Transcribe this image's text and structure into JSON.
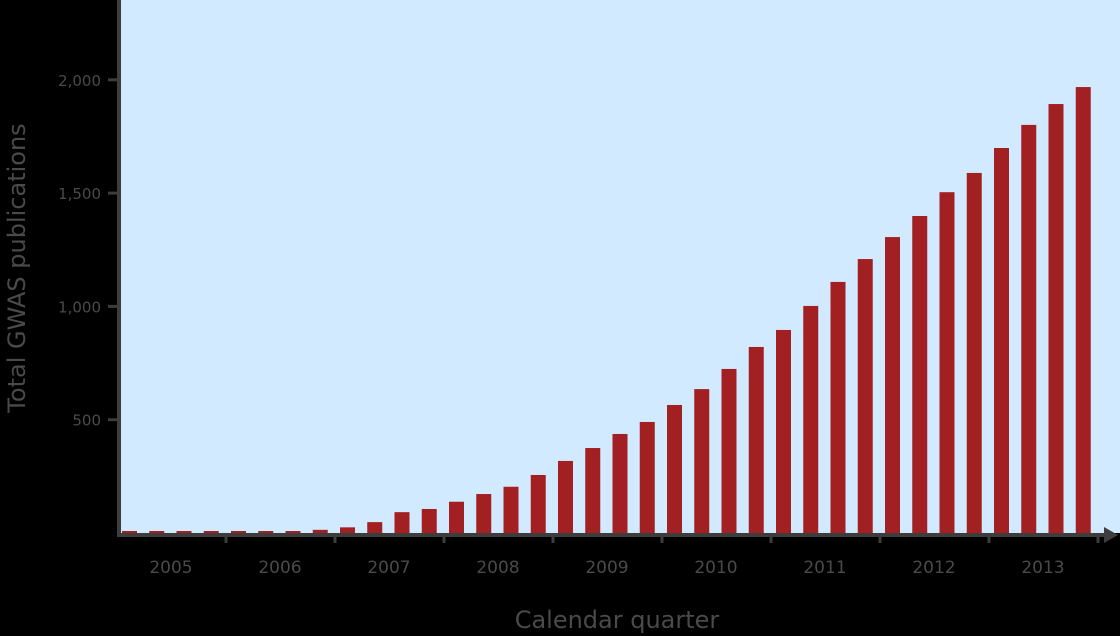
{
  "chart_data": {
    "type": "bar",
    "title": "",
    "xlabel": "Calendar quarter",
    "ylabel": "Total GWAS publications",
    "ylim": [
      0,
      2350
    ],
    "yticks": [
      500,
      1000,
      1500,
      2000
    ],
    "ytick_labels": [
      "500",
      "1,000",
      "1,500",
      "2,000"
    ],
    "year_labels": [
      "2005",
      "2006",
      "2007",
      "2008",
      "2009",
      "2010",
      "2011",
      "2012",
      "2013"
    ],
    "categories": [
      "2005 Q1",
      "2005 Q2",
      "2005 Q3",
      "2005 Q4",
      "2006 Q1",
      "2006 Q2",
      "2006 Q3",
      "2006 Q4",
      "2007 Q1",
      "2007 Q2",
      "2007 Q3",
      "2007 Q4",
      "2008 Q1",
      "2008 Q2",
      "2008 Q3",
      "2008 Q4",
      "2009 Q1",
      "2009 Q2",
      "2009 Q3",
      "2009 Q4",
      "2010 Q1",
      "2010 Q2",
      "2010 Q3",
      "2010 Q4",
      "2011 Q1",
      "2011 Q2",
      "2011 Q3",
      "2011 Q4",
      "2012 Q1",
      "2012 Q2",
      "2012 Q3",
      "2012 Q4",
      "2013 Q1",
      "2013 Q2",
      "2013 Q3",
      "2013 Q4"
    ],
    "values": [
      5,
      5,
      5,
      5,
      5,
      8,
      8,
      14,
      25,
      48,
      92,
      106,
      138,
      172,
      204,
      256,
      318,
      375,
      437,
      490,
      565,
      635,
      724,
      821,
      896,
      1002,
      1108,
      1209,
      1306,
      1399,
      1504,
      1589,
      1699,
      1801,
      1893,
      1968
    ],
    "grid": false,
    "legend": null,
    "colors": {
      "bar": "#a32022",
      "plot_bg": "#d2eaff",
      "axis": "#3d3d3d",
      "page_bg": "#000000",
      "text": "#4a4a4a"
    }
  }
}
